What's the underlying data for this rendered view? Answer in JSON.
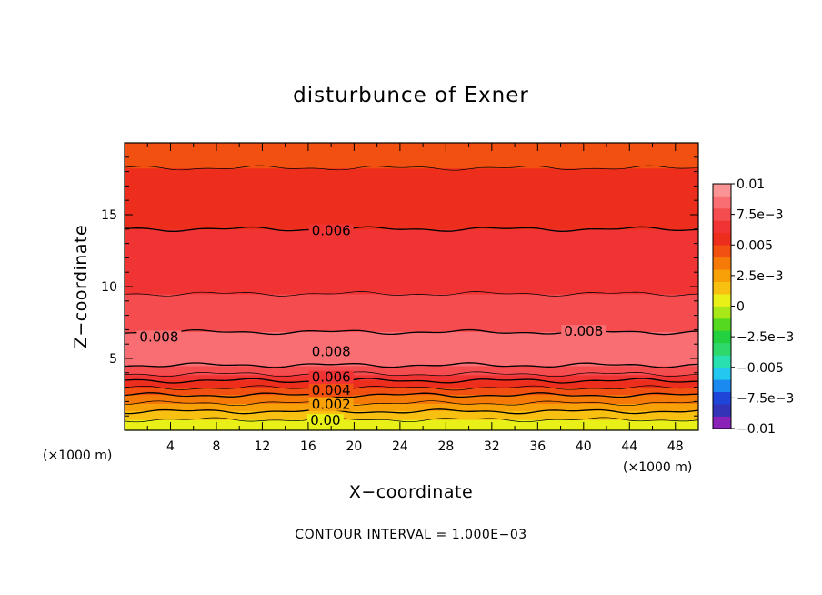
{
  "chart_data": {
    "type": "contour",
    "title": "disturbunce of Exner",
    "xlabel": "X−coordinate",
    "ylabel": "Z−coordinate",
    "x_unit": "(×1000 m)",
    "y_unit": "(×1000 m)",
    "xlim": [
      0,
      50
    ],
    "ylim": [
      0,
      20
    ],
    "x_ticks": [
      4,
      8,
      12,
      16,
      20,
      24,
      28,
      32,
      36,
      40,
      44,
      48
    ],
    "y_ticks": [
      5,
      10,
      15
    ],
    "contour_interval_text": "CONTOUR INTERVAL = 1.000E−03",
    "contour_labels": [
      {
        "text": "0.006",
        "x": 18,
        "z": 13.7
      },
      {
        "text": "0.008",
        "x": 3,
        "z": 6.3
      },
      {
        "text": "0.008",
        "x": 18,
        "z": 5.3
      },
      {
        "text": "0.008",
        "x": 40,
        "z": 6.7
      },
      {
        "text": "0.006",
        "x": 18,
        "z": 3.5
      },
      {
        "text": "0.004",
        "x": 18,
        "z": 2.6
      },
      {
        "text": "0.002",
        "x": 18,
        "z": 1.6
      },
      {
        "text": "0.00",
        "x": 17.5,
        "z": 0.5
      }
    ],
    "profile": [
      {
        "z": 0.0,
        "value": 0.0
      },
      {
        "z": 0.4,
        "value": 0.0004
      },
      {
        "z": 0.8,
        "value": 0.0011
      },
      {
        "z": 1.2,
        "value": 0.0018
      },
      {
        "z": 1.6,
        "value": 0.0025
      },
      {
        "z": 2.0,
        "value": 0.0032
      },
      {
        "z": 2.4,
        "value": 0.0039
      },
      {
        "z": 2.8,
        "value": 0.0047
      },
      {
        "z": 3.2,
        "value": 0.0055
      },
      {
        "z": 3.6,
        "value": 0.0063
      },
      {
        "z": 4.0,
        "value": 0.0072
      },
      {
        "z": 4.6,
        "value": 0.0081
      },
      {
        "z": 5.5,
        "value": 0.0087
      },
      {
        "z": 6.5,
        "value": 0.0082
      },
      {
        "z": 7.5,
        "value": 0.0076
      },
      {
        "z": 9.0,
        "value": 0.0071
      },
      {
        "z": 10.0,
        "value": 0.0069
      },
      {
        "z": 11.5,
        "value": 0.0066
      },
      {
        "z": 13.0,
        "value": 0.0062
      },
      {
        "z": 14.5,
        "value": 0.0059
      },
      {
        "z": 16.0,
        "value": 0.0056
      },
      {
        "z": 17.5,
        "value": 0.0052
      },
      {
        "z": 19.0,
        "value": 0.0048
      },
      {
        "z": 20.0,
        "value": 0.0046
      }
    ],
    "colorbar": {
      "labels": [
        {
          "text": "0.01",
          "value": 0.01
        },
        {
          "text": "7.5e−3",
          "value": 0.0075
        },
        {
          "text": "0.005",
          "value": 0.005
        },
        {
          "text": "2.5e−3",
          "value": 0.0025
        },
        {
          "text": "0",
          "value": 0
        },
        {
          "text": "−2.5e−3",
          "value": -0.0025
        },
        {
          "text": "−0.005",
          "value": -0.005
        },
        {
          "text": "−7.5e−3",
          "value": -0.0075
        },
        {
          "text": "−0.01",
          "value": -0.01
        }
      ],
      "range": [
        -0.01,
        0.01
      ],
      "colors": [
        "#8B22B8",
        "#3333B8",
        "#1F44D8",
        "#1A8AF0",
        "#22C8F0",
        "#28E0B0",
        "#2FD86A",
        "#22D040",
        "#55D820",
        "#A8E818",
        "#E8F018",
        "#F8C010",
        "#F8A008",
        "#F57A08",
        "#F25010",
        "#EE2E1C",
        "#F03434",
        "#F54C50",
        "#F86E72",
        "#FA9494"
      ]
    }
  }
}
